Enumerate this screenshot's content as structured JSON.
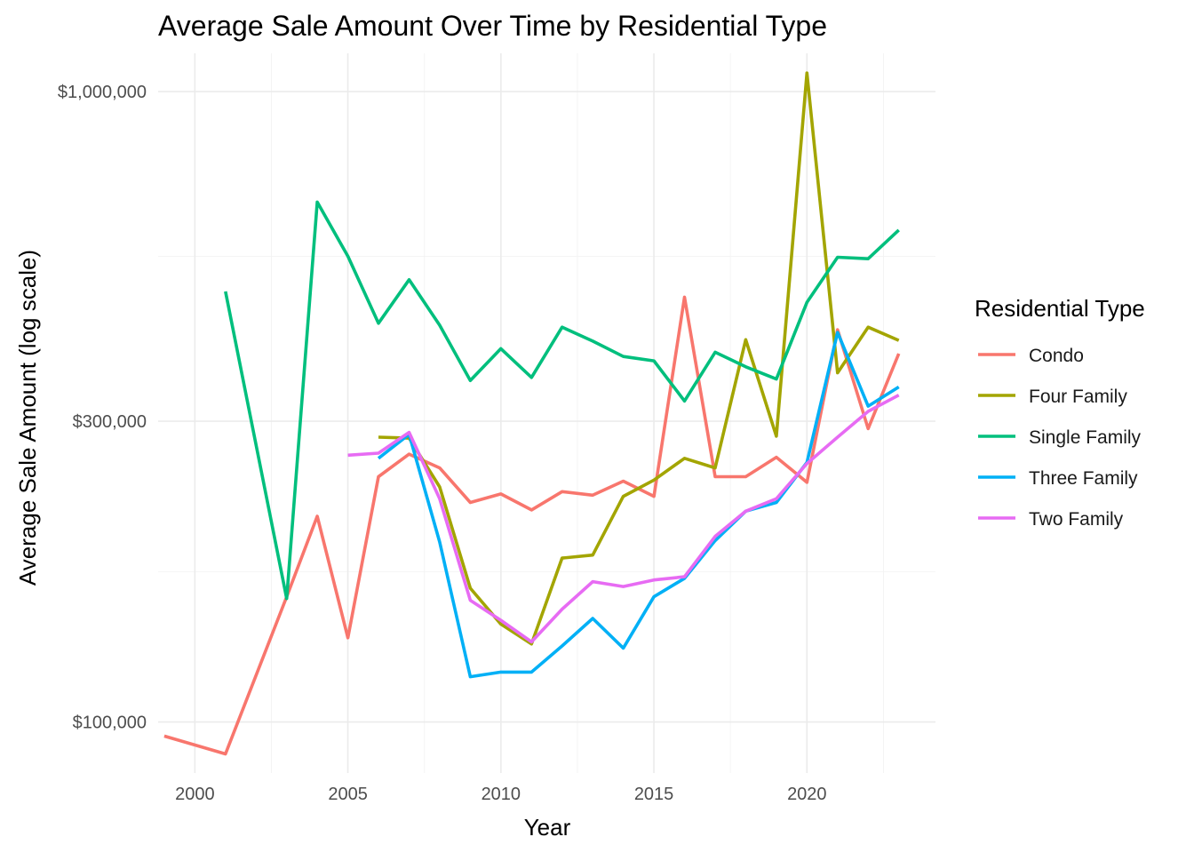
{
  "chart_data": {
    "type": "line",
    "title": "Average Sale Amount Over Time by Residential Type",
    "xlabel": "Year",
    "ylabel": "Average Sale Amount (log scale)",
    "y_scale": "log10",
    "xlim": [
      1998.8,
      2024.2
    ],
    "ylim": [
      83000,
      1150000
    ],
    "x_ticks": [
      2000,
      2005,
      2010,
      2015,
      2020
    ],
    "x_tick_labels": [
      "2000",
      "2005",
      "2010",
      "2015",
      "2020"
    ],
    "x_minor_ticks": [
      2002.5,
      2007.5,
      2012.5,
      2017.5,
      2022.5
    ],
    "y_ticks": [
      100000,
      300000,
      1000000
    ],
    "y_tick_labels": [
      "$100,000",
      "$300,000",
      "$1,000,000"
    ],
    "y_minor_ticks": [
      173205,
      547723
    ],
    "grid": true,
    "legend": {
      "title": "Residential Type",
      "placement": "right"
    },
    "series": [
      {
        "name": "Condo",
        "color": "#F8766D",
        "x": [
          1999,
          2001,
          2003,
          2004,
          2005,
          2006,
          2007,
          2008,
          2009,
          2010,
          2011,
          2012,
          2013,
          2014,
          2015,
          2016,
          2017,
          2018,
          2019,
          2020,
          2021,
          2022,
          2023
        ],
        "y": [
          95000,
          89000,
          158000,
          212000,
          136000,
          245000,
          266000,
          253000,
          223000,
          230000,
          217000,
          232000,
          229000,
          241000,
          228000,
          472000,
          245000,
          245000,
          263000,
          240000,
          419000,
          292000,
          384000
        ]
      },
      {
        "name": "Four Family",
        "color": "#A3A500",
        "x": [
          2006,
          2007,
          2008,
          2009,
          2010,
          2011,
          2012,
          2013,
          2014,
          2015,
          2016,
          2017,
          2018,
          2019,
          2020,
          2021,
          2022,
          2023
        ],
        "y": [
          283000,
          282000,
          236000,
          163000,
          143000,
          133000,
          182000,
          184000,
          228000,
          242000,
          262000,
          253000,
          404000,
          284000,
          1070000,
          358000,
          423000,
          403000
        ]
      },
      {
        "name": "Single Family",
        "color": "#00BF7D",
        "x": [
          2001,
          2003,
          2004,
          2005,
          2006,
          2007,
          2008,
          2009,
          2010,
          2011,
          2012,
          2013,
          2014,
          2015,
          2016,
          2017,
          2018,
          2019,
          2020,
          2021,
          2022,
          2023
        ],
        "y": [
          482000,
          157000,
          668000,
          548000,
          429000,
          503000,
          426000,
          348000,
          391000,
          352000,
          423000,
          402000,
          380000,
          374000,
          323000,
          386000,
          366000,
          350000,
          463000,
          546000,
          543000,
          603000
        ]
      },
      {
        "name": "Three Family",
        "color": "#00B0F6",
        "x": [
          2006,
          2007,
          2008,
          2009,
          2010,
          2011,
          2012,
          2013,
          2014,
          2015,
          2016,
          2017,
          2018,
          2019,
          2020,
          2021,
          2022,
          2023
        ],
        "y": [
          262000,
          286000,
          193000,
          118000,
          120000,
          120000,
          132000,
          146000,
          131000,
          158000,
          169000,
          194000,
          216000,
          223000,
          258000,
          415000,
          317000,
          340000
        ]
      },
      {
        "name": "Two Family",
        "color": "#E76BF3",
        "x": [
          2005,
          2006,
          2007,
          2008,
          2009,
          2010,
          2011,
          2012,
          2013,
          2014,
          2015,
          2016,
          2017,
          2018,
          2019,
          2020,
          2021,
          2022,
          2023
        ],
        "y": [
          265000,
          267000,
          288000,
          226000,
          156000,
          145000,
          134000,
          151000,
          167000,
          164000,
          168000,
          170000,
          197000,
          216000,
          226000,
          257000,
          283000,
          311000,
          330000
        ]
      }
    ]
  }
}
